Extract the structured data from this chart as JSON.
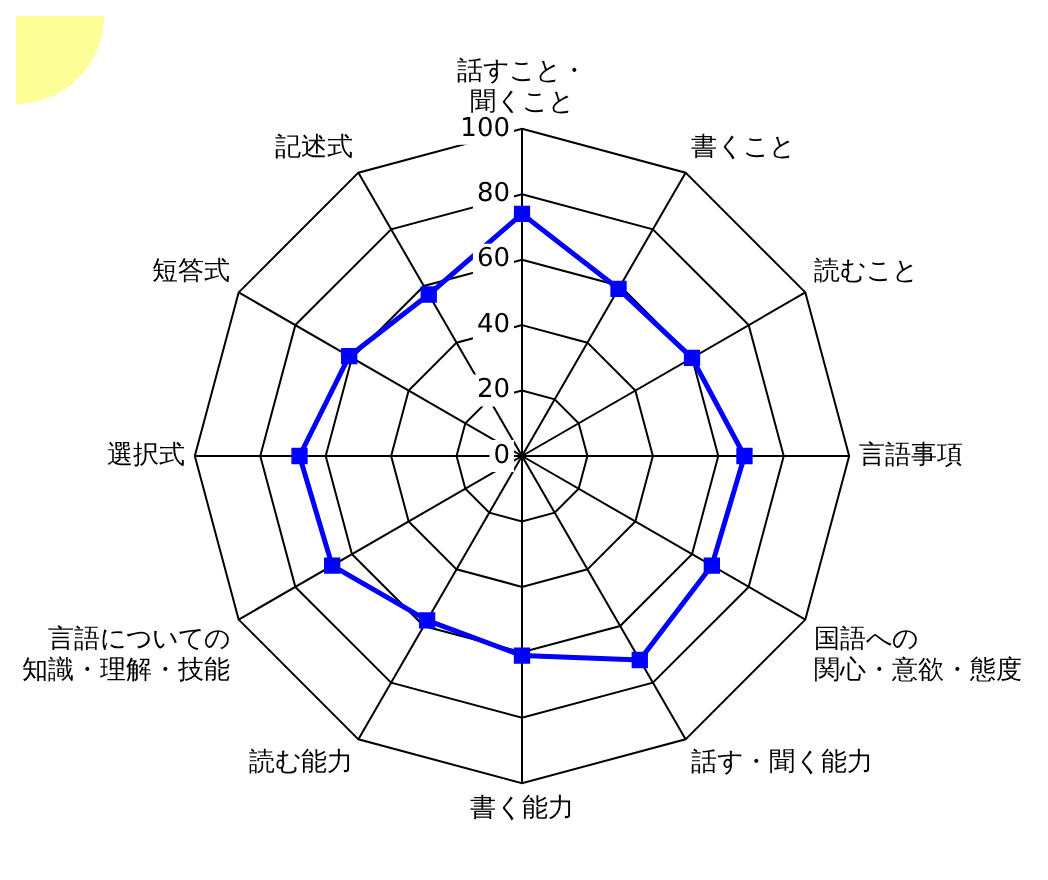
{
  "chart_data": {
    "type": "radar",
    "categories": [
      "話すこと・聞くこと",
      "書くこと",
      "読むこと",
      "言語事項",
      "国語への関心・意欲・態度",
      "話す・聞く能力",
      "書く能力",
      "読む能力",
      "言語についての知識・理解・技能",
      "選択式",
      "短答式",
      "記述式"
    ],
    "series": [
      {
        "color": "#0000ff",
        "values": [
          74,
          59,
          60,
          68,
          67,
          72,
          61,
          58,
          67,
          68,
          61,
          57
        ]
      }
    ],
    "ylim": [
      0,
      100
    ],
    "yticks": [
      0,
      20,
      40,
      60,
      80,
      100
    ],
    "grid": true,
    "legend": false,
    "marker": "square",
    "line_style": "solid"
  }
}
